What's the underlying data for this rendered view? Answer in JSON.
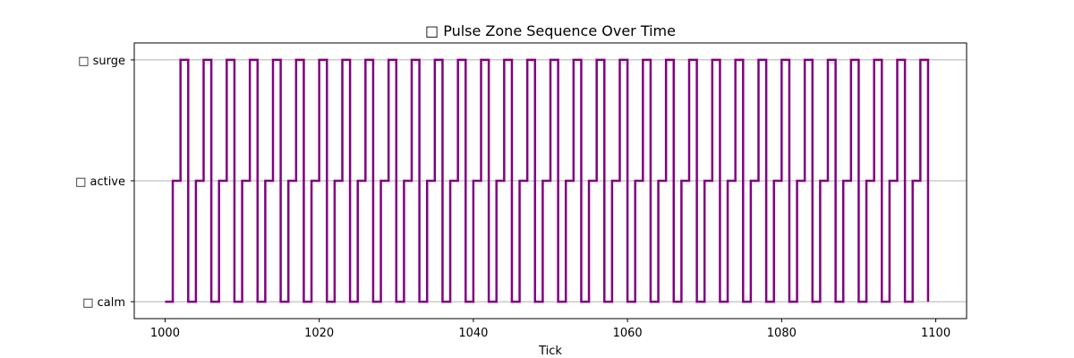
{
  "chart_data": {
    "type": "line",
    "title": "□ Pulse Zone Sequence Over Time",
    "xlabel": "Tick",
    "ylabel": "",
    "xlim": [
      996,
      1104
    ],
    "ylim": [
      -0.14,
      2.14
    ],
    "x_ticks": [
      1000,
      1020,
      1040,
      1060,
      1080,
      1100
    ],
    "y_categories": [
      "□ calm",
      "□ active",
      "□ surge"
    ],
    "grid": "horizontal",
    "step": "post",
    "series": [
      {
        "color": "#800080",
        "x_start": 1000,
        "x_end": 1099,
        "pattern": [
          0,
          1,
          2
        ],
        "values": [
          0,
          1,
          2,
          0,
          1,
          2,
          0,
          1,
          2,
          0,
          1,
          2,
          0,
          1,
          2,
          0,
          1,
          2,
          0,
          1,
          2,
          0,
          1,
          2,
          0,
          1,
          2,
          0,
          1,
          2,
          0,
          1,
          2,
          0,
          1,
          2,
          0,
          1,
          2,
          0,
          1,
          2,
          0,
          1,
          2,
          0,
          1,
          2,
          0,
          1,
          2,
          0,
          1,
          2,
          0,
          1,
          2,
          0,
          1,
          2,
          0,
          1,
          2,
          0,
          1,
          2,
          0,
          1,
          2,
          0,
          1,
          2,
          0,
          1,
          2,
          0,
          1,
          2,
          0,
          1,
          2,
          0,
          1,
          2,
          0,
          1,
          2,
          0,
          1,
          2,
          0,
          1,
          2,
          0,
          1,
          2,
          0,
          1,
          2,
          0
        ]
      }
    ]
  }
}
